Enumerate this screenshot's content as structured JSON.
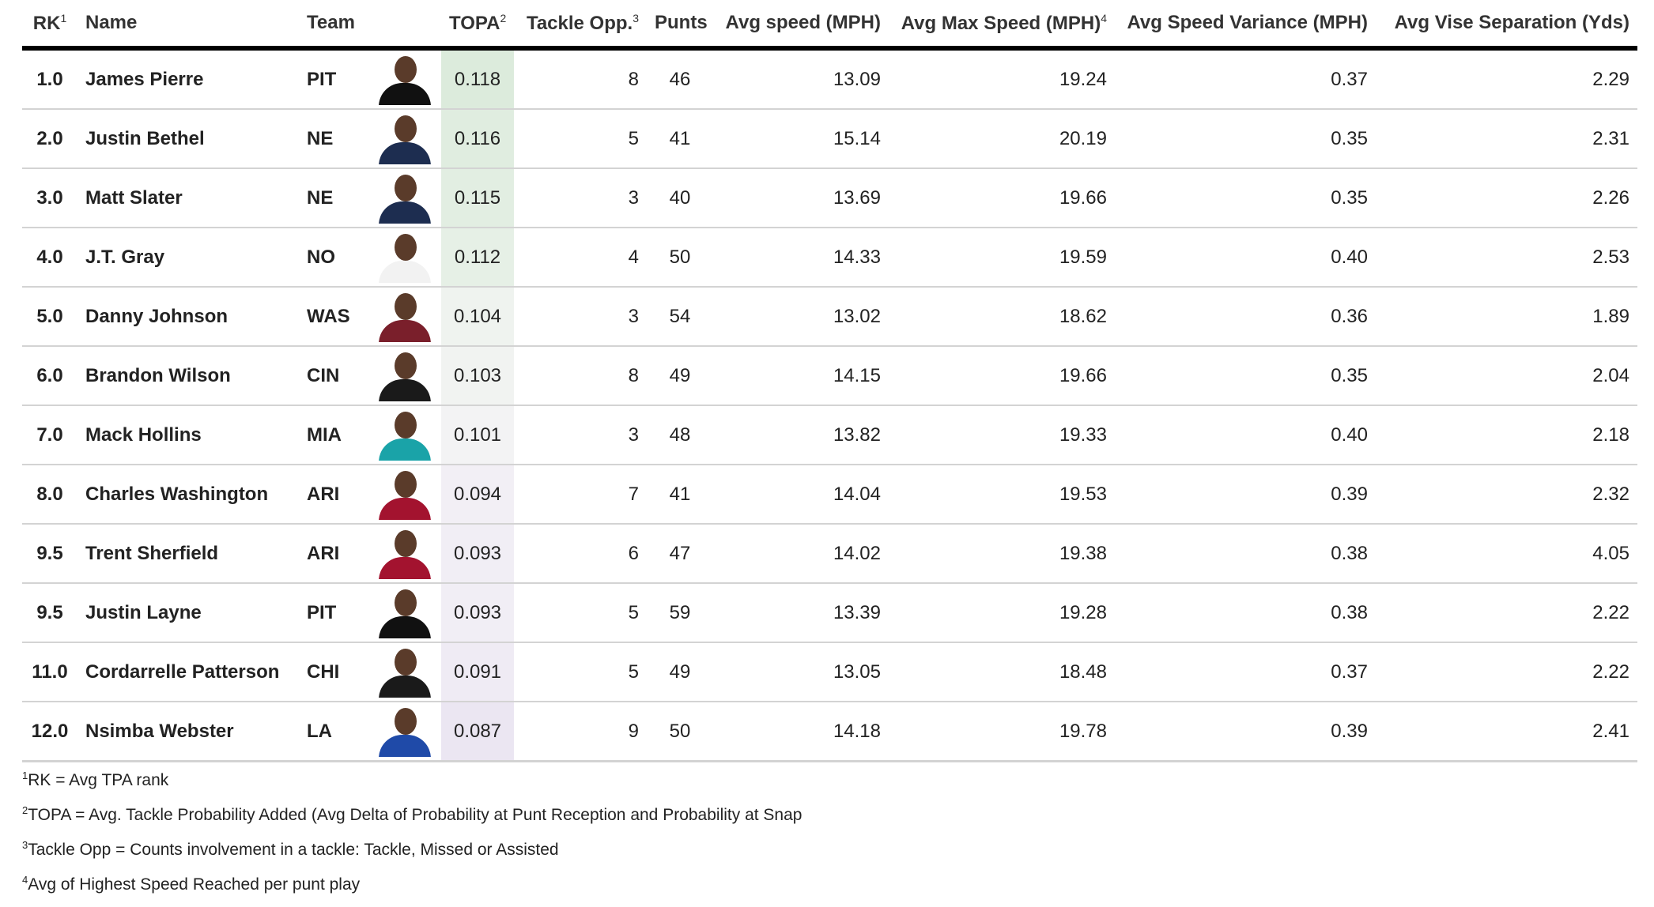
{
  "header": {
    "rk": "RK",
    "rk_note": "1",
    "name": "Name",
    "team": "Team",
    "topa": "TOPA",
    "topa_note": "2",
    "tackle": "Tackle Opp.",
    "tackle_note": "3",
    "punts": "Punts",
    "avg_speed": "Avg speed (MPH)",
    "avg_max_speed": "Avg Max Speed (MPH)",
    "avg_max_note": "4",
    "speed_var": "Avg Speed Variance (MPH)",
    "vise": "Avg Vise Separation (Yds)"
  },
  "rows": [
    {
      "rk": "1.0",
      "name": "James Pierre",
      "team": "PIT",
      "photo_icon": "player-headshot-icon",
      "jersey_color": "#111111",
      "topa": "0.118",
      "topa_bg": "#dcebdc",
      "tackle": "8",
      "punts": "46",
      "speed": "13.09",
      "max_speed": "19.24",
      "variance": "0.37",
      "vise": "2.29"
    },
    {
      "rk": "2.0",
      "name": "Justin Bethel",
      "team": "NE",
      "photo_icon": "player-headshot-icon",
      "jersey_color": "#1d2d50",
      "topa": "0.116",
      "topa_bg": "#e0ede0",
      "tackle": "5",
      "punts": "41",
      "speed": "15.14",
      "max_speed": "20.19",
      "variance": "0.35",
      "vise": "2.31"
    },
    {
      "rk": "3.0",
      "name": "Matt Slater",
      "team": "NE",
      "photo_icon": "player-headshot-icon",
      "jersey_color": "#1d2d50",
      "topa": "0.115",
      "topa_bg": "#e2eee2",
      "tackle": "3",
      "punts": "40",
      "speed": "13.69",
      "max_speed": "19.66",
      "variance": "0.35",
      "vise": "2.26"
    },
    {
      "rk": "4.0",
      "name": "J.T. Gray",
      "team": "NO",
      "photo_icon": "player-headshot-icon",
      "jersey_color": "#f2f2f2",
      "topa": "0.112",
      "topa_bg": "#e6f0e6",
      "tackle": "4",
      "punts": "50",
      "speed": "14.33",
      "max_speed": "19.59",
      "variance": "0.40",
      "vise": "2.53"
    },
    {
      "rk": "5.0",
      "name": "Danny Johnson",
      "team": "WAS",
      "photo_icon": "player-headshot-icon",
      "jersey_color": "#7a1f2b",
      "topa": "0.104",
      "topa_bg": "#eff3ef",
      "tackle": "3",
      "punts": "54",
      "speed": "13.02",
      "max_speed": "18.62",
      "variance": "0.36",
      "vise": "1.89"
    },
    {
      "rk": "6.0",
      "name": "Brandon Wilson",
      "team": "CIN",
      "photo_icon": "player-headshot-icon",
      "jersey_color": "#1a1a1a",
      "topa": "0.103",
      "topa_bg": "#f1f3f1",
      "tackle": "8",
      "punts": "49",
      "speed": "14.15",
      "max_speed": "19.66",
      "variance": "0.35",
      "vise": "2.04"
    },
    {
      "rk": "7.0",
      "name": "Mack Hollins",
      "team": "MIA",
      "photo_icon": "player-headshot-icon",
      "jersey_color": "#1aa3a8",
      "topa": "0.101",
      "topa_bg": "#f3f3f4",
      "tackle": "3",
      "punts": "48",
      "speed": "13.82",
      "max_speed": "19.33",
      "variance": "0.40",
      "vise": "2.18"
    },
    {
      "rk": "8.0",
      "name": "Charles Washington",
      "team": "ARI",
      "photo_icon": "player-headshot-icon",
      "jersey_color": "#a3132f",
      "topa": "0.094",
      "topa_bg": "#f2eff5",
      "tackle": "7",
      "punts": "41",
      "speed": "14.04",
      "max_speed": "19.53",
      "variance": "0.39",
      "vise": "2.32"
    },
    {
      "rk": "9.5",
      "name": "Trent Sherfield",
      "team": "ARI",
      "photo_icon": "player-headshot-icon",
      "jersey_color": "#a3132f",
      "topa": "0.093",
      "topa_bg": "#f1eef5",
      "tackle": "6",
      "punts": "47",
      "speed": "14.02",
      "max_speed": "19.38",
      "variance": "0.38",
      "vise": "4.05"
    },
    {
      "rk": "9.5",
      "name": "Justin Layne",
      "team": "PIT",
      "photo_icon": "player-headshot-icon",
      "jersey_color": "#111111",
      "topa": "0.093",
      "topa_bg": "#f1eef5",
      "tackle": "5",
      "punts": "59",
      "speed": "13.39",
      "max_speed": "19.28",
      "variance": "0.38",
      "vise": "2.22"
    },
    {
      "rk": "11.0",
      "name": "Cordarrelle Patterson",
      "team": "CHI",
      "photo_icon": "player-headshot-icon",
      "jersey_color": "#1a1a1a",
      "topa": "0.091",
      "topa_bg": "#efebf4",
      "tackle": "5",
      "punts": "49",
      "speed": "13.05",
      "max_speed": "18.48",
      "variance": "0.37",
      "vise": "2.22"
    },
    {
      "rk": "12.0",
      "name": "Nsimba Webster",
      "team": "LA",
      "photo_icon": "player-headshot-icon",
      "jersey_color": "#1f4aa8",
      "topa": "0.087",
      "topa_bg": "#ebe6f2",
      "tackle": "9",
      "punts": "50",
      "speed": "14.18",
      "max_speed": "19.78",
      "variance": "0.39",
      "vise": "2.41"
    }
  ],
  "footnotes": [
    {
      "mark": "1",
      "text": "RK = Avg TPA rank"
    },
    {
      "mark": "2",
      "text": "TOPA = Avg. Tackle Probability Added (Avg Delta of Probability at Punt Reception and Probability at Snap"
    },
    {
      "mark": "3",
      "text": "Tackle Opp = Counts involvement in a tackle: Tackle, Missed or Assisted"
    },
    {
      "mark": "4",
      "text": "Avg of Highest Speed Reached per punt play"
    }
  ]
}
